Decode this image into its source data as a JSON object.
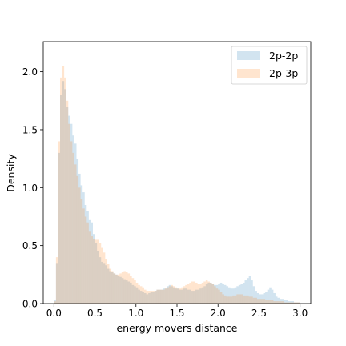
{
  "chart_data": {
    "type": "histogram",
    "xlabel": "energy movers distance",
    "ylabel": "Density",
    "xlim": [
      -0.13,
      3.13
    ],
    "ylim": [
      0,
      2.26
    ],
    "xticks": [
      0.0,
      0.5,
      1.0,
      1.5,
      2.0,
      2.5,
      3.0
    ],
    "xtick_labels": [
      "0.0",
      "0.5",
      "1.0",
      "1.5",
      "2.0",
      "2.5",
      "3.0"
    ],
    "yticks": [
      0.0,
      0.5,
      1.0,
      1.5,
      2.0
    ],
    "ytick_labels": [
      "0.0",
      "0.5",
      "1.0",
      "1.5",
      "2.0"
    ],
    "legend_position": "upper right",
    "bin_width": 0.025,
    "series": [
      {
        "name": "2p-2p",
        "color": "#1f77b4",
        "alpha": 0.2,
        "bin_start": 0.0,
        "values": [
          0.03,
          0.35,
          1.3,
          1.8,
          1.92,
          1.85,
          1.7,
          1.62,
          1.55,
          1.45,
          1.38,
          1.25,
          1.12,
          1.02,
          0.96,
          0.85,
          0.8,
          0.72,
          0.7,
          0.6,
          0.52,
          0.45,
          0.4,
          0.36,
          0.35,
          0.33,
          0.3,
          0.28,
          0.27,
          0.26,
          0.25,
          0.24,
          0.23,
          0.22,
          0.21,
          0.2,
          0.19,
          0.18,
          0.16,
          0.15,
          0.14,
          0.12,
          0.11,
          0.1,
          0.09,
          0.08,
          0.09,
          0.1,
          0.1,
          0.11,
          0.12,
          0.12,
          0.12,
          0.13,
          0.13,
          0.15,
          0.16,
          0.15,
          0.14,
          0.13,
          0.13,
          0.12,
          0.12,
          0.13,
          0.13,
          0.12,
          0.12,
          0.11,
          0.11,
          0.12,
          0.12,
          0.13,
          0.14,
          0.15,
          0.17,
          0.18,
          0.18,
          0.17,
          0.16,
          0.16,
          0.17,
          0.18,
          0.17,
          0.16,
          0.15,
          0.14,
          0.13,
          0.13,
          0.14,
          0.15,
          0.16,
          0.17,
          0.18,
          0.2,
          0.22,
          0.24,
          0.2,
          0.15,
          0.11,
          0.09,
          0.08,
          0.08,
          0.09,
          0.1,
          0.12,
          0.14,
          0.12,
          0.09,
          0.06,
          0.05,
          0.04,
          0.04,
          0.03,
          0.03,
          0.02,
          0.02,
          0.02,
          0.01,
          0.01,
          0.01
        ]
      },
      {
        "name": "2p-3p",
        "color": "#ff7f0e",
        "alpha": 0.2,
        "bin_start": 0.0,
        "values": [
          0.02,
          0.4,
          1.4,
          1.95,
          2.05,
          1.95,
          1.75,
          1.55,
          1.4,
          1.3,
          1.2,
          1.1,
          1.0,
          0.9,
          0.82,
          0.75,
          0.7,
          0.62,
          0.58,
          0.56,
          0.55,
          0.55,
          0.52,
          0.48,
          0.44,
          0.38,
          0.34,
          0.3,
          0.28,
          0.26,
          0.25,
          0.25,
          0.26,
          0.27,
          0.28,
          0.27,
          0.26,
          0.24,
          0.22,
          0.2,
          0.18,
          0.16,
          0.15,
          0.14,
          0.12,
          0.11,
          0.11,
          0.11,
          0.11,
          0.11,
          0.12,
          0.12,
          0.12,
          0.12,
          0.13,
          0.14,
          0.15,
          0.16,
          0.15,
          0.14,
          0.13,
          0.13,
          0.14,
          0.15,
          0.16,
          0.17,
          0.18,
          0.19,
          0.19,
          0.18,
          0.17,
          0.17,
          0.18,
          0.19,
          0.2,
          0.19,
          0.18,
          0.17,
          0.15,
          0.13,
          0.12,
          0.1,
          0.08,
          0.07,
          0.06,
          0.06,
          0.06,
          0.07,
          0.07,
          0.08,
          0.08,
          0.08,
          0.07,
          0.07,
          0.07,
          0.06,
          0.06,
          0.05,
          0.05,
          0.04,
          0.04,
          0.04,
          0.04,
          0.03,
          0.03,
          0.03,
          0.03,
          0.02,
          0.02,
          0.02,
          0.02,
          0.02,
          0.01,
          0.01,
          0.01,
          0.01,
          0.01,
          0.01,
          0.01,
          0.01
        ]
      }
    ]
  }
}
